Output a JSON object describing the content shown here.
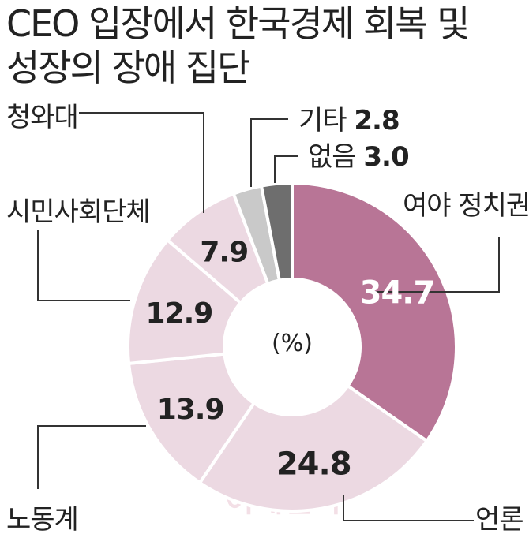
{
  "chart_data": {
    "type": "pie",
    "title_lines": [
      "CEO 입장에서 한국경제 회복 및",
      "성장의 장애 집단"
    ],
    "unit": "(%)",
    "slices": [
      {
        "name": "여야 정치권",
        "value": 34.7,
        "value_label": "34.7",
        "color": "#b87596",
        "text_color": "#ffffff"
      },
      {
        "name": "언론",
        "value": 24.8,
        "value_label": "24.8",
        "color": "#ecd9e2",
        "text_color": "#222222"
      },
      {
        "name": "노동계",
        "value": 13.9,
        "value_label": "13.9",
        "color": "#ecd9e2",
        "text_color": "#222222"
      },
      {
        "name": "시민사회단체",
        "value": 12.9,
        "value_label": "12.9",
        "color": "#ecd9e2",
        "text_color": "#222222"
      },
      {
        "name": "청와대",
        "value": 7.9,
        "value_label": "7.9",
        "color": "#ecd9e2",
        "text_color": "#222222"
      },
      {
        "name": "기타",
        "value": 2.8,
        "value_label": "2.8",
        "color": "#c9c9c9",
        "text_color": "#222222"
      },
      {
        "name": "없음",
        "value": 3.0,
        "value_label": "3.0",
        "color": "#6e6e6e",
        "text_color": "#222222"
      }
    ],
    "legend": "none"
  },
  "watermark": "이데일리"
}
